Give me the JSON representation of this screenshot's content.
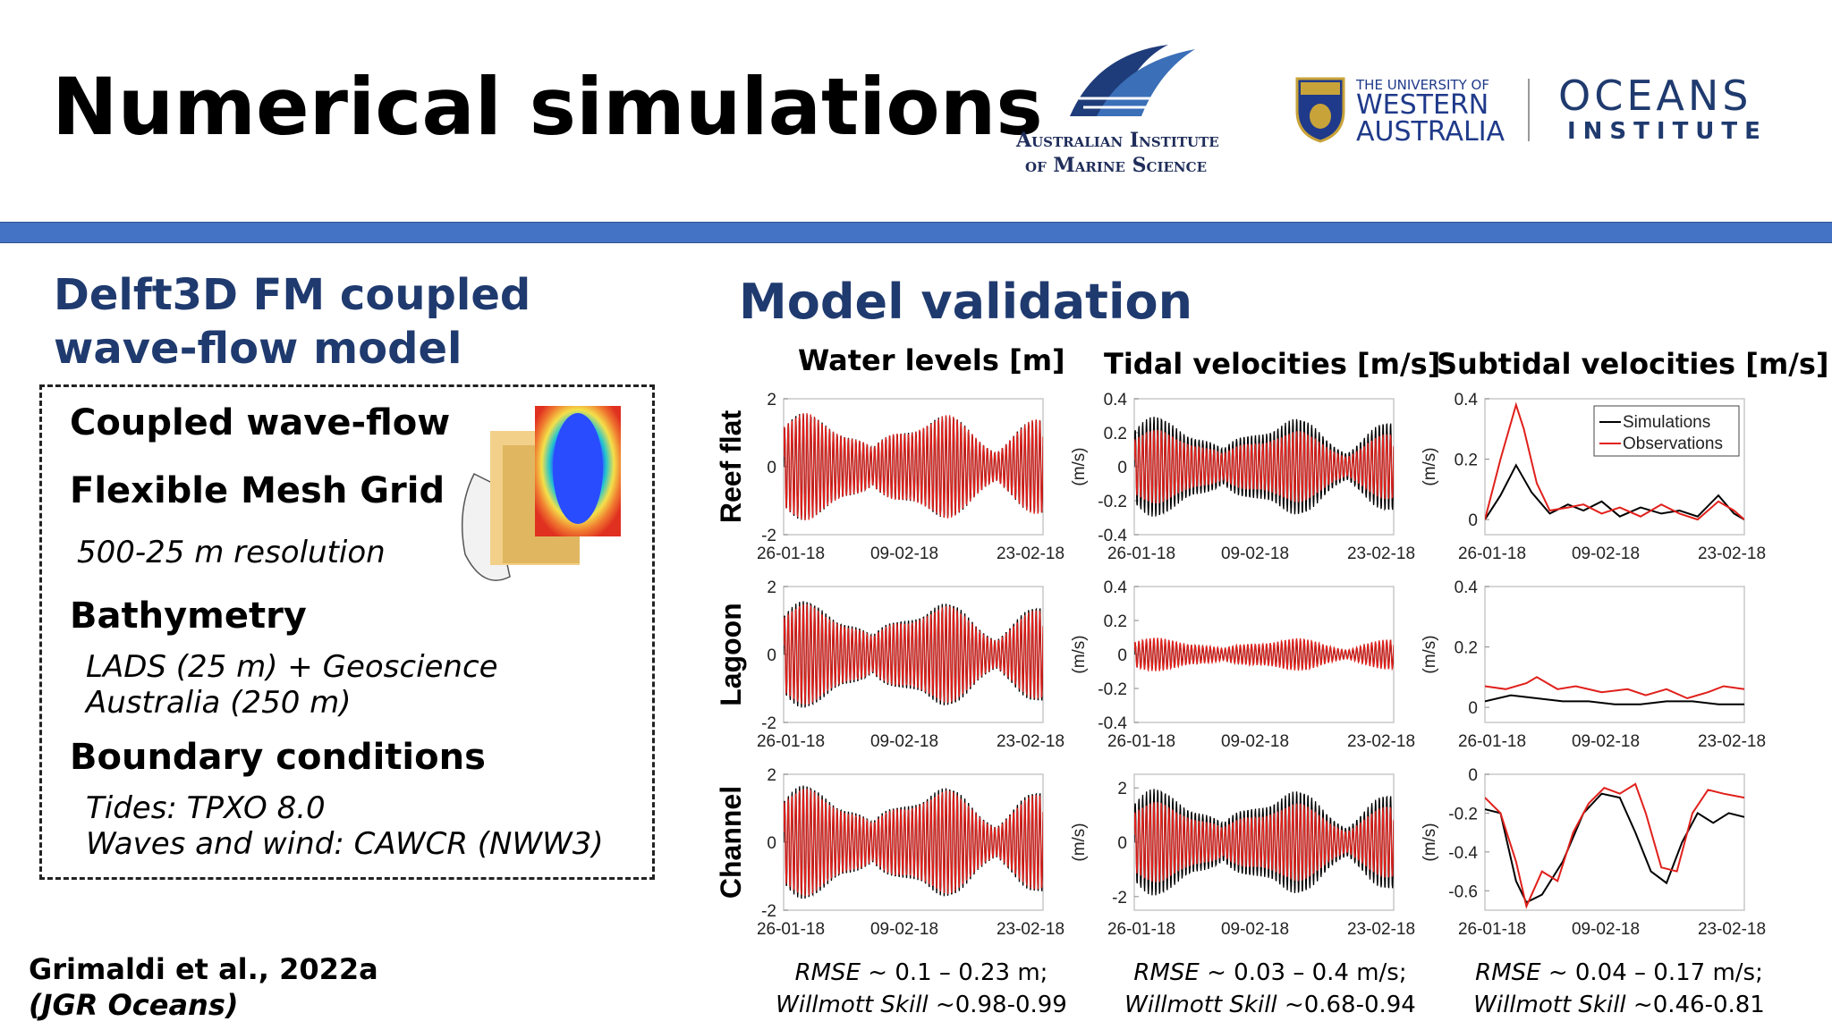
{
  "slide": {
    "title": "Numerical simulations",
    "model_heading": [
      "Delft3D FM coupled",
      "wave-flow model"
    ],
    "box": {
      "item1": "Coupled wave-flow",
      "item2": "Flexible Mesh Grid",
      "item2_sub": "500-25 m resolution",
      "item3": "Bathymetry",
      "item3_sub": [
        "LADS (25 m) + Geoscience",
        "Australia (250 m)"
      ],
      "item4": "Boundary conditions",
      "item4_sub": [
        "Tides: TPXO 8.0",
        "Waves and wind: CAWCR (NWW3)"
      ]
    },
    "citation": [
      "Grimaldi et al., 2022a",
      "(JGR Oceans)"
    ],
    "validation_heading": "Model validation",
    "logos": {
      "aims": [
        "Australian Institute",
        "of Marine Science"
      ],
      "uwa": [
        "THE UNIVERSITY OF",
        "WESTERN",
        "AUSTRALIA"
      ],
      "oceans": [
        "OCEANS",
        "INSTITUTE"
      ]
    },
    "columns": [
      "Water levels [m]",
      "Tidal velocities [m/s]",
      "Subtidal velocities [m/s]"
    ],
    "rows": [
      "Reef flat",
      "Lagoon",
      "Channel"
    ],
    "stats": [
      {
        "rmse_label": "RMSE",
        "rmse_value": " ~ 0.1 – 0.23 m;",
        "skill_label": "Willmott Skill",
        "skill_value": " ~0.98-0.99"
      },
      {
        "rmse_label": "RMSE",
        "rmse_value": " ~ 0.03 – 0.4 m/s;",
        "skill_label": "Willmott Skill",
        "skill_value": " ~0.68-0.94"
      },
      {
        "rmse_label": "RMSE",
        "rmse_value": " ~ 0.04 – 0.17 m/s;",
        "skill_label": "Willmott Skill",
        "skill_value": " ~0.46-0.81"
      }
    ],
    "colors": {
      "accent_band": "#4472c4",
      "heading": "#1f3a6e",
      "simulations": "#000000",
      "observations": "#e0201b"
    }
  },
  "chart_data": [
    {
      "type": "line",
      "row": "Reef flat",
      "column": "Water levels [m]",
      "ylabel": "",
      "ylim": [
        -2,
        2
      ],
      "yticks": [
        "2",
        "0",
        "-2"
      ],
      "xticks": [
        "26-01-18",
        "09-02-18",
        "23-02-18"
      ],
      "signal": "tidal",
      "series": [
        {
          "amplitude": 1.6
        },
        {
          "amplitude": 1.6
        }
      ]
    },
    {
      "type": "line",
      "row": "Reef flat",
      "column": "Tidal velocities [m/s]",
      "ylabel": "(m/s)",
      "ylim": [
        -0.4,
        0.4
      ],
      "yticks": [
        "0.4",
        "0.2",
        "0",
        "-0.2",
        "-0.4"
      ],
      "xticks": [
        "26-01-18",
        "09-02-18",
        "23-02-18"
      ],
      "signal": "tidal",
      "series": [
        {
          "amplitude": 0.3
        },
        {
          "amplitude": 0.22
        }
      ]
    },
    {
      "type": "line",
      "row": "Reef flat",
      "column": "Subtidal velocities [m/s]",
      "ylabel": "(m/s)",
      "ylim": [
        -0.05,
        0.4
      ],
      "yticks": [
        "0.4",
        "0.2",
        "0"
      ],
      "xticks": [
        "26-01-18",
        "09-02-18",
        "23-02-18"
      ],
      "signal": "subtidal",
      "legend_position": "top-right",
      "series": [
        {
          "name": "Simulations",
          "x": [
            0,
            0.06,
            0.12,
            0.18,
            0.25,
            0.32,
            0.38,
            0.45,
            0.52,
            0.6,
            0.68,
            0.75,
            0.82,
            0.9,
            0.96,
            1
          ],
          "y": [
            0.0,
            0.08,
            0.18,
            0.09,
            0.02,
            0.05,
            0.03,
            0.06,
            0.01,
            0.04,
            0.02,
            0.03,
            0.01,
            0.08,
            0.02,
            0.0
          ]
        },
        {
          "name": "Observations",
          "x": [
            0,
            0.06,
            0.12,
            0.15,
            0.2,
            0.25,
            0.32,
            0.38,
            0.45,
            0.52,
            0.6,
            0.68,
            0.75,
            0.82,
            0.9,
            0.96,
            1
          ],
          "y": [
            0.0,
            0.2,
            0.38,
            0.3,
            0.12,
            0.03,
            0.04,
            0.05,
            0.02,
            0.04,
            0.01,
            0.05,
            0.02,
            0.0,
            0.06,
            0.03,
            0.0
          ]
        }
      ]
    },
    {
      "type": "line",
      "row": "Lagoon",
      "column": "Water levels [m]",
      "ylabel": "",
      "ylim": [
        -2,
        2
      ],
      "yticks": [
        "2",
        "0",
        "-2"
      ],
      "xticks": [
        "26-01-18",
        "09-02-18",
        "23-02-18"
      ],
      "signal": "tidal",
      "series": [
        {
          "amplitude": 1.6
        },
        {
          "amplitude": 1.5
        }
      ]
    },
    {
      "type": "line",
      "row": "Lagoon",
      "column": "Tidal velocities [m/s]",
      "ylabel": "(m/s)",
      "ylim": [
        -0.4,
        0.4
      ],
      "yticks": [
        "0.4",
        "0.2",
        "0",
        "-0.2",
        "-0.4"
      ],
      "xticks": [
        "26-01-18",
        "09-02-18",
        "23-02-18"
      ],
      "signal": "tidal",
      "series": [
        {
          "amplitude": 0.09
        },
        {
          "amplitude": 0.1
        }
      ]
    },
    {
      "type": "line",
      "row": "Lagoon",
      "column": "Subtidal velocities [m/s]",
      "ylabel": "(m/s)",
      "ylim": [
        -0.05,
        0.4
      ],
      "yticks": [
        "0.4",
        "0.2",
        "0"
      ],
      "xticks": [
        "26-01-18",
        "09-02-18",
        "23-02-18"
      ],
      "signal": "subtidal",
      "series": [
        {
          "name": "Simulations",
          "x": [
            0,
            0.1,
            0.2,
            0.3,
            0.4,
            0.5,
            0.6,
            0.7,
            0.8,
            0.9,
            1
          ],
          "y": [
            0.02,
            0.04,
            0.03,
            0.02,
            0.02,
            0.01,
            0.01,
            0.02,
            0.02,
            0.01,
            0.01
          ]
        },
        {
          "name": "Observations",
          "x": [
            0,
            0.08,
            0.16,
            0.2,
            0.28,
            0.35,
            0.45,
            0.55,
            0.62,
            0.7,
            0.78,
            0.86,
            0.92,
            1
          ],
          "y": [
            0.07,
            0.06,
            0.08,
            0.1,
            0.06,
            0.07,
            0.05,
            0.06,
            0.04,
            0.06,
            0.03,
            0.05,
            0.07,
            0.06
          ]
        }
      ]
    },
    {
      "type": "line",
      "row": "Channel",
      "column": "Water levels [m]",
      "ylabel": "",
      "ylim": [
        -2,
        2
      ],
      "yticks": [
        "2",
        "0",
        "-2"
      ],
      "xticks": [
        "26-01-18",
        "09-02-18",
        "23-02-18"
      ],
      "signal": "tidal",
      "series": [
        {
          "amplitude": 1.7
        },
        {
          "amplitude": 1.6
        }
      ]
    },
    {
      "type": "line",
      "row": "Channel",
      "column": "Tidal velocities [m/s]",
      "ylabel": "(m/s)",
      "ylim": [
        -2.5,
        2.5
      ],
      "yticks": [
        "2",
        "0",
        "-2"
      ],
      "xticks": [
        "26-01-18",
        "09-02-18",
        "23-02-18"
      ],
      "signal": "tidal",
      "series": [
        {
          "amplitude": 2.0
        },
        {
          "amplitude": 1.5
        }
      ]
    },
    {
      "type": "line",
      "row": "Channel",
      "column": "Subtidal velocities [m/s]",
      "ylabel": "(m/s)",
      "ylim": [
        -0.7,
        0.0
      ],
      "yticks": [
        "0",
        "-0.2",
        "-0.4",
        "-0.6"
      ],
      "xticks": [
        "26-01-18",
        "09-02-18",
        "23-02-18"
      ],
      "signal": "subtidal",
      "series": [
        {
          "name": "Simulations",
          "x": [
            0,
            0.06,
            0.12,
            0.16,
            0.22,
            0.3,
            0.38,
            0.45,
            0.52,
            0.58,
            0.64,
            0.7,
            0.76,
            0.82,
            0.88,
            0.94,
            1
          ],
          "y": [
            -0.18,
            -0.2,
            -0.55,
            -0.66,
            -0.62,
            -0.45,
            -0.2,
            -0.1,
            -0.12,
            -0.3,
            -0.5,
            -0.56,
            -0.35,
            -0.2,
            -0.25,
            -0.2,
            -0.22
          ]
        },
        {
          "name": "Observations",
          "x": [
            0,
            0.06,
            0.12,
            0.16,
            0.22,
            0.28,
            0.34,
            0.4,
            0.46,
            0.52,
            0.58,
            0.62,
            0.68,
            0.74,
            0.8,
            0.86,
            0.92,
            1
          ],
          "y": [
            -0.12,
            -0.2,
            -0.45,
            -0.68,
            -0.5,
            -0.55,
            -0.3,
            -0.15,
            -0.07,
            -0.1,
            -0.05,
            -0.2,
            -0.48,
            -0.5,
            -0.2,
            -0.08,
            -0.1,
            -0.12
          ]
        }
      ]
    }
  ]
}
